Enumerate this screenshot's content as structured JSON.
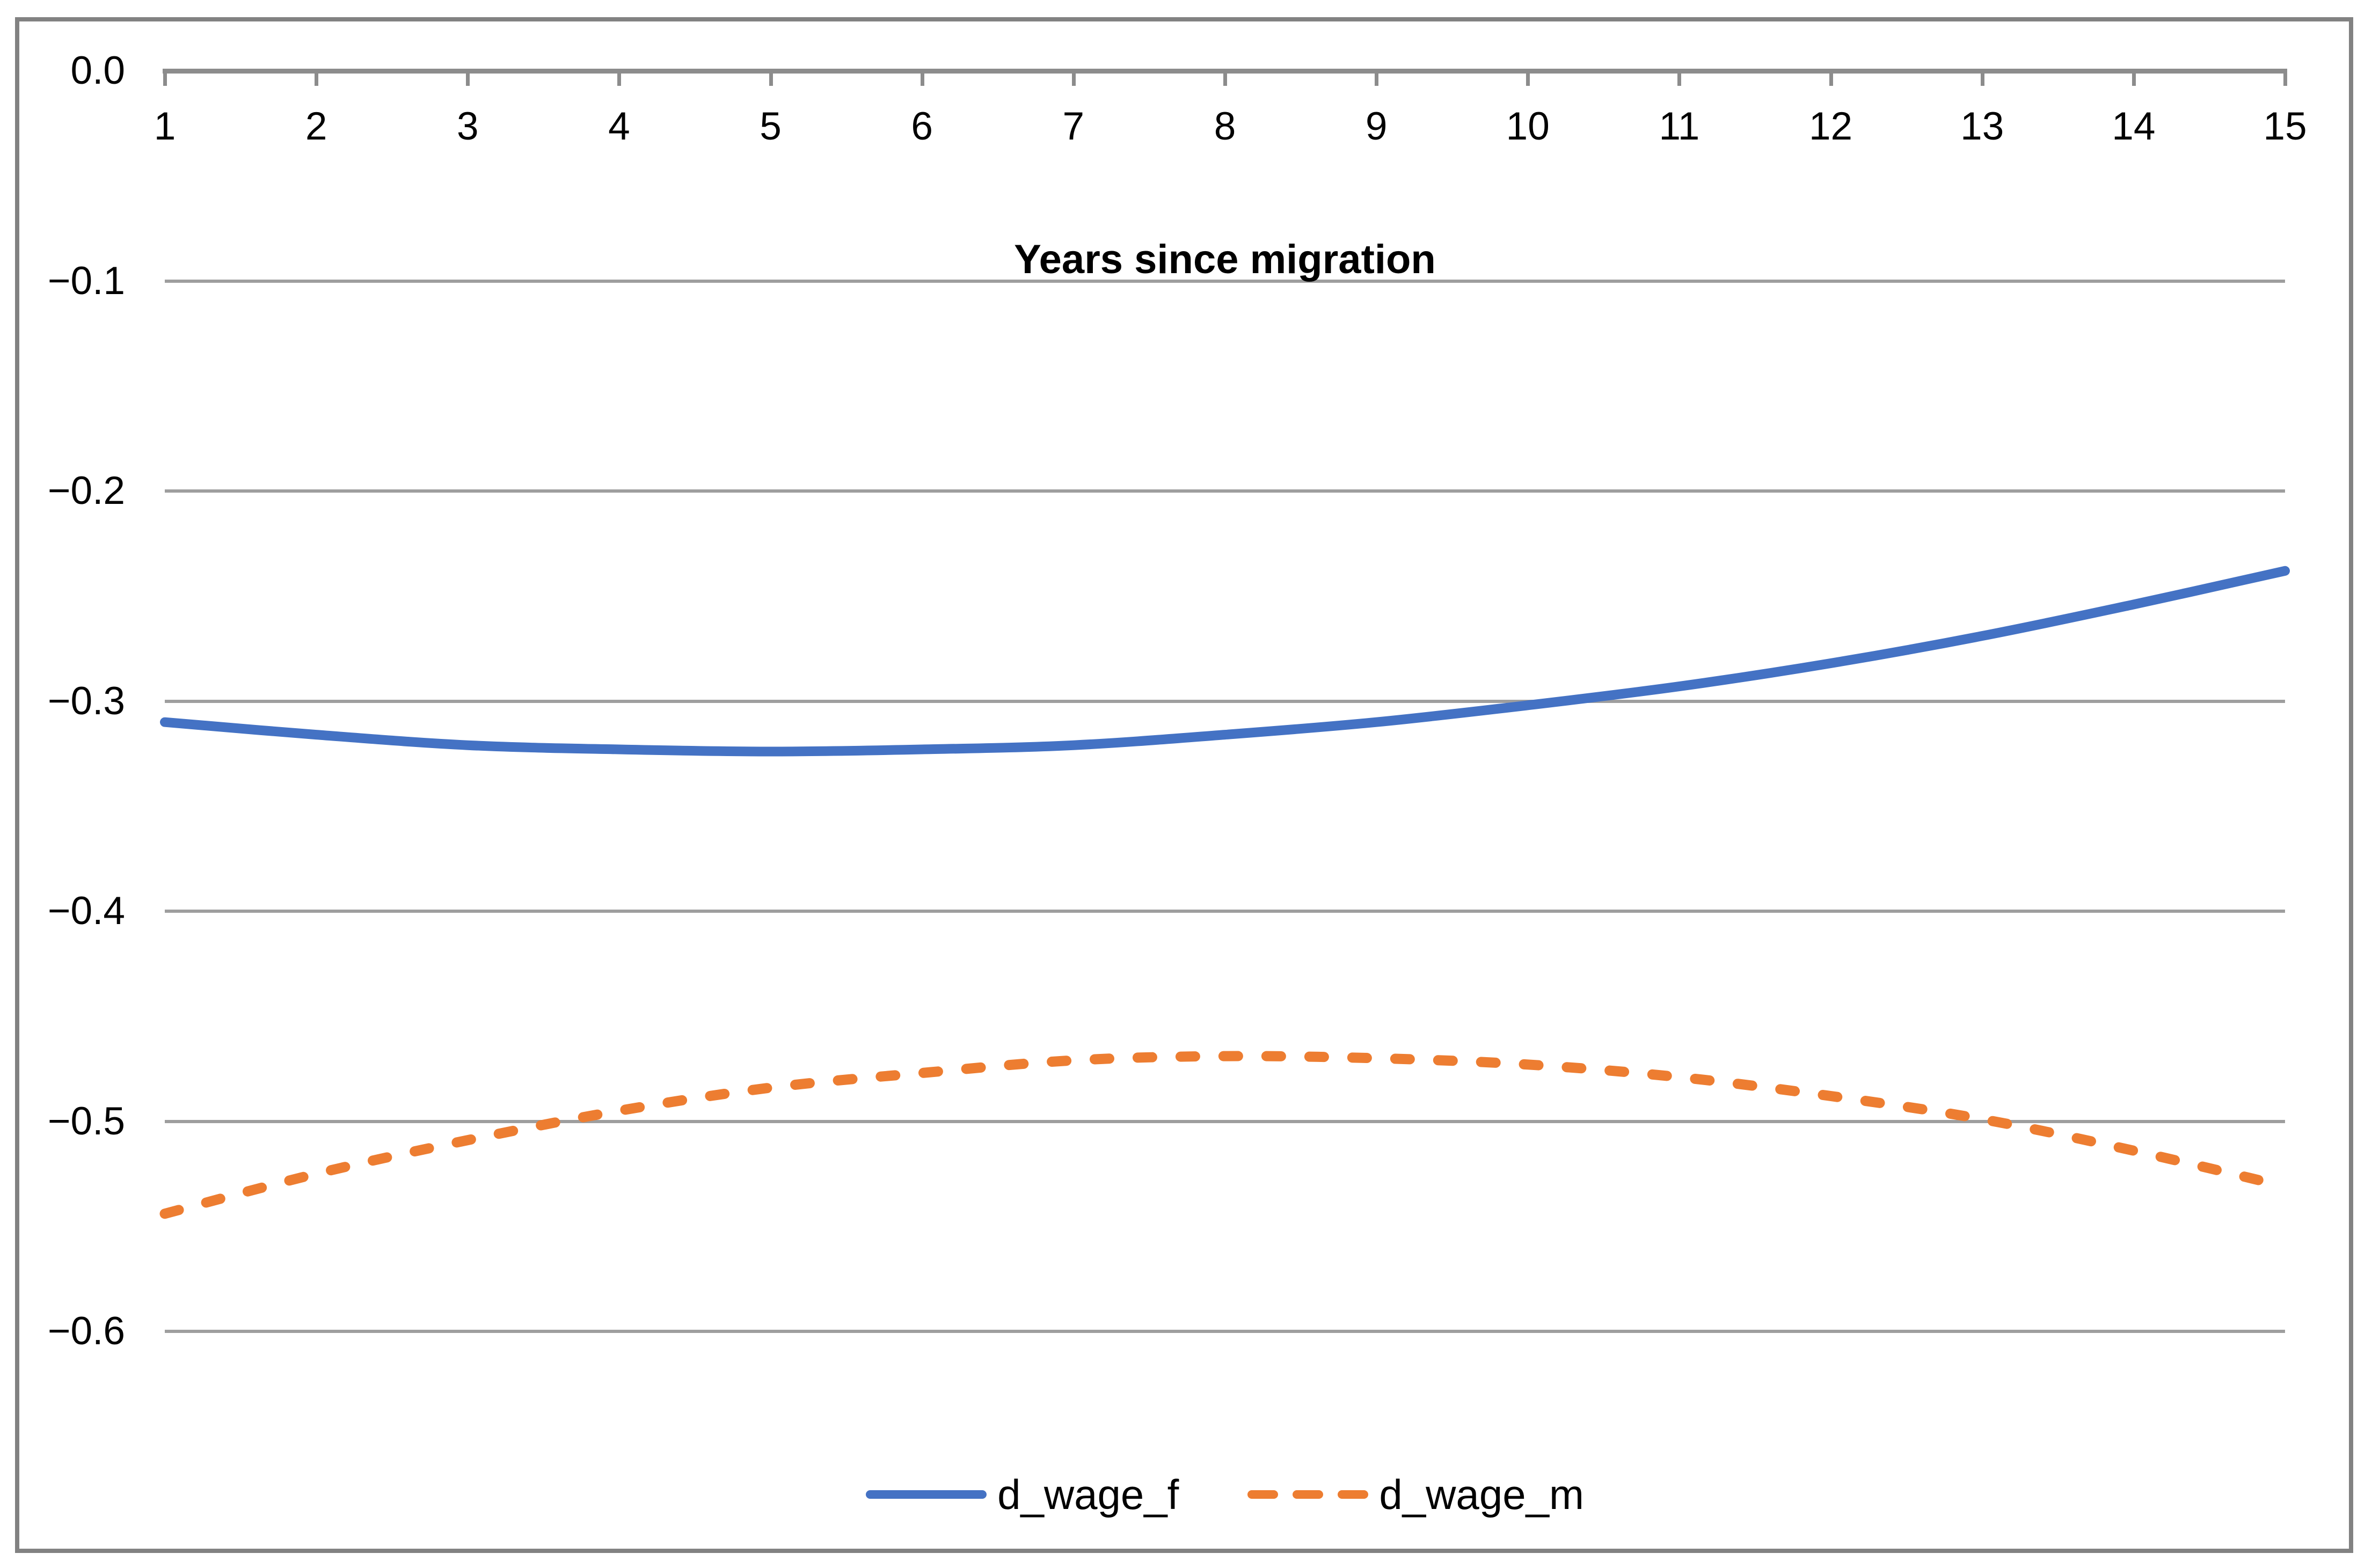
{
  "chart": {
    "xaxis_title": "Years since migration",
    "x_tick_labels": [
      "1",
      "2",
      "3",
      "4",
      "5",
      "6",
      "7",
      "8",
      "9",
      "10",
      "11",
      "12",
      "13",
      "14",
      "15"
    ],
    "y_tick_labels": [
      "0.0",
      "−0.1",
      "−0.2",
      "−0.3",
      "−0.4",
      "−0.5",
      "−0.6"
    ],
    "legend": [
      {
        "label": "d_wage_f",
        "style": "solid"
      },
      {
        "label": "d_wage_m",
        "style": "dashed"
      }
    ]
  },
  "chart_data": {
    "type": "line",
    "x": [
      1,
      2,
      3,
      4,
      5,
      6,
      7,
      8,
      9,
      10,
      11,
      12,
      13,
      14,
      15
    ],
    "series": [
      {
        "name": "d_wage_f",
        "color": "#4472C4",
        "style": "solid",
        "values": [
          -0.31,
          -0.316,
          -0.321,
          -0.323,
          -0.324,
          -0.323,
          -0.321,
          -0.316,
          -0.31,
          -0.302,
          -0.293,
          -0.282,
          -0.269,
          -0.254,
          -0.238
        ]
      },
      {
        "name": "d_wage_m",
        "color": "#ED7D31",
        "style": "dashed",
        "values": [
          -0.544,
          -0.525,
          -0.509,
          -0.495,
          -0.484,
          -0.477,
          -0.471,
          -0.469,
          -0.47,
          -0.473,
          -0.479,
          -0.488,
          -0.499,
          -0.514,
          -0.531
        ]
      }
    ],
    "title": "",
    "xlabel": "Years since migration",
    "ylabel": "",
    "xlim": [
      1,
      15
    ],
    "ylim": [
      -0.65,
      0.0
    ],
    "y_gridlines": [
      -0.1,
      -0.2,
      -0.3,
      -0.4,
      -0.5,
      -0.6
    ],
    "y_ticks": [
      0.0,
      -0.1,
      -0.2,
      -0.3,
      -0.4,
      -0.5,
      -0.6
    ],
    "x_axis_position": "top",
    "grid": "horizontal-only",
    "legend_position": "bottom-center"
  },
  "colors": {
    "series_blue": "#4472C4",
    "series_orange": "#ED7D31",
    "gridline": "#9e9e9e",
    "axis": "#8c8c8c",
    "border": "#828282",
    "text": "#000000",
    "background": "#ffffff"
  }
}
